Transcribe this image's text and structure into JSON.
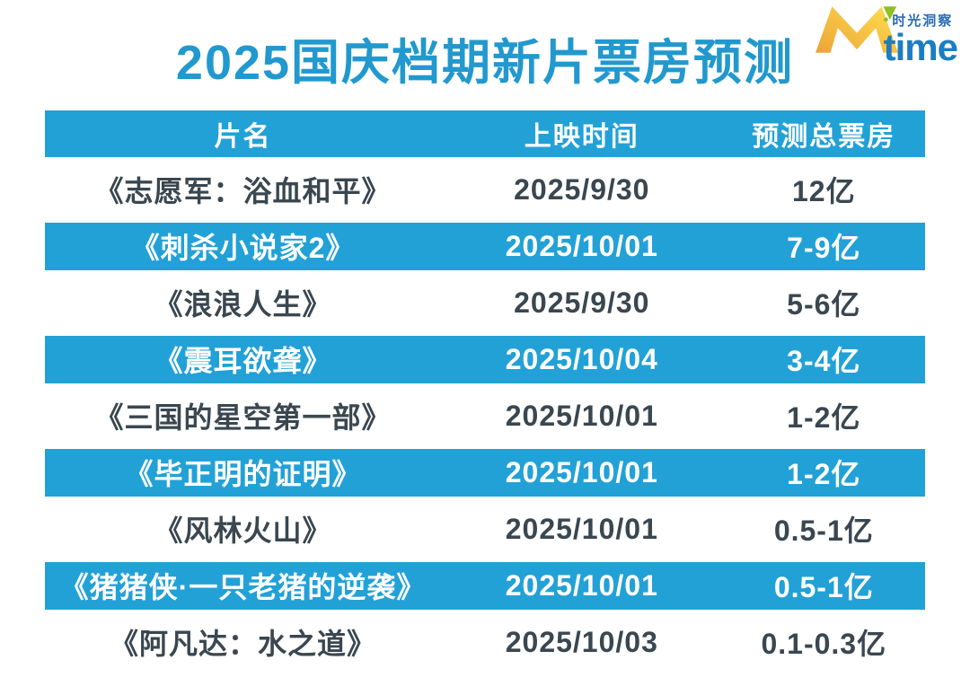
{
  "title": "2025国庆档期新片票房预测",
  "logo": {
    "bullet": "•",
    "tagline": "时光洞察",
    "time": "time",
    "m_letter": "M"
  },
  "table": {
    "columns": [
      "片名",
      "上映时间",
      "预测总票房"
    ],
    "rows": [
      [
        "《志愿军：浴血和平》",
        "2025/9/30",
        "12亿"
      ],
      [
        "《刺杀小说家2》",
        "2025/10/01",
        "7-9亿"
      ],
      [
        "《浪浪人生》",
        "2025/9/30",
        "5-6亿"
      ],
      [
        "《震耳欲聋》",
        "2025/10/04",
        "3-4亿"
      ],
      [
        "《三国的星空第一部》",
        "2025/10/01",
        "1-2亿"
      ],
      [
        "《毕正明的证明》",
        "2025/10/01",
        "1-2亿"
      ],
      [
        "《风林火山》",
        "2025/10/01",
        "0.5-1亿"
      ],
      [
        "《猪猪侠·一只老猪的逆袭》",
        "2025/10/01",
        "0.5-1亿"
      ],
      [
        "《阿凡达：水之道》",
        "2025/10/03",
        "0.1-0.3亿"
      ]
    ]
  },
  "chart_data": {
    "type": "table",
    "title": "2025国庆档期新片票房预测",
    "columns": [
      "片名",
      "上映时间",
      "预测总票房"
    ],
    "rows": [
      {
        "film": "《志愿军：浴血和平》",
        "release_date": "2025/9/30",
        "predicted_box_office": "12亿"
      },
      {
        "film": "《刺杀小说家2》",
        "release_date": "2025/10/01",
        "predicted_box_office": "7-9亿"
      },
      {
        "film": "《浪浪人生》",
        "release_date": "2025/9/30",
        "predicted_box_office": "5-6亿"
      },
      {
        "film": "《震耳欲聋》",
        "release_date": "2025/10/04",
        "predicted_box_office": "3-4亿"
      },
      {
        "film": "《三国的星空第一部》",
        "release_date": "2025/10/01",
        "predicted_box_office": "1-2亿"
      },
      {
        "film": "《毕正明的证明》",
        "release_date": "2025/10/01",
        "predicted_box_office": "1-2亿"
      },
      {
        "film": "《风林火山》",
        "release_date": "2025/10/01",
        "predicted_box_office": "0.5-1亿"
      },
      {
        "film": "《猪猪侠·一只老猪的逆袭》",
        "release_date": "2025/10/01",
        "predicted_box_office": "0.5-1亿"
      },
      {
        "film": "《阿凡达：水之道》",
        "release_date": "2025/10/03",
        "predicted_box_office": "0.1-0.3亿"
      }
    ],
    "layout_hints": {
      "alternating_row_highlight": "even data rows highlighted blue",
      "unit": "亿 (hundred million CNY)"
    }
  },
  "colors": {
    "background": "#ffffff",
    "accent_blue": "#22a1d7",
    "title_blue": "#2199ce",
    "dark_text": "#3a4750",
    "header_text": "#ffffff",
    "logo_time_blue": "#1b7ec2",
    "logo_tagline_blue": "#2a6cb5",
    "logo_gold": "#eda338",
    "logo_yellow": "#ffdf4f",
    "logo_green": "#8fbf21"
  }
}
